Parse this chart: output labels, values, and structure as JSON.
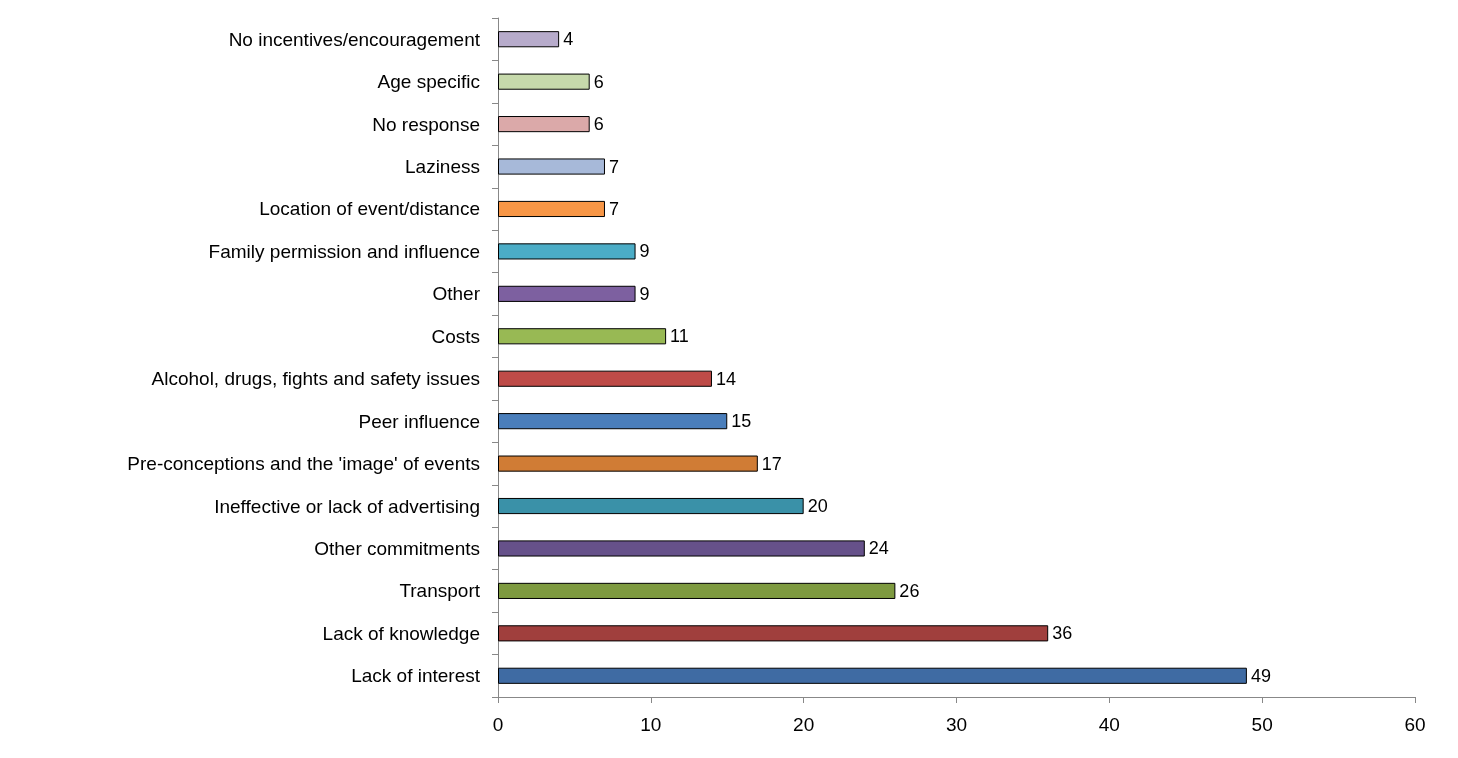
{
  "chart_data": {
    "type": "bar",
    "orientation": "horizontal",
    "categories": [
      "No incentives/encouragement",
      "Age specific",
      "No response",
      "Laziness",
      "Location of event/distance",
      "Family permission and influence",
      "Other",
      "Costs",
      "Alcohol, drugs, fights and safety issues",
      "Peer influence",
      "Pre-conceptions and the 'image' of events",
      "Ineffective or lack of advertising",
      "Other commitments",
      "Transport",
      "Lack of knowledge",
      "Lack of interest"
    ],
    "values": [
      4,
      6,
      6,
      7,
      7,
      9,
      9,
      11,
      14,
      15,
      17,
      20,
      24,
      26,
      36,
      49
    ],
    "colors": [
      "#b7abcb",
      "#c6d9ab",
      "#dba9a9",
      "#a7b9d9",
      "#f79646",
      "#4bacc6",
      "#7d60a0",
      "#98b954",
      "#be4b48",
      "#4a7ebb",
      "#d07c35",
      "#3a91a8",
      "#66518a",
      "#7e9a40",
      "#a03f3d",
      "#3f6ba3"
    ],
    "xlim": [
      0,
      60
    ],
    "xticks": [
      0,
      10,
      20,
      30,
      40,
      50,
      60
    ],
    "data_labels": true
  }
}
